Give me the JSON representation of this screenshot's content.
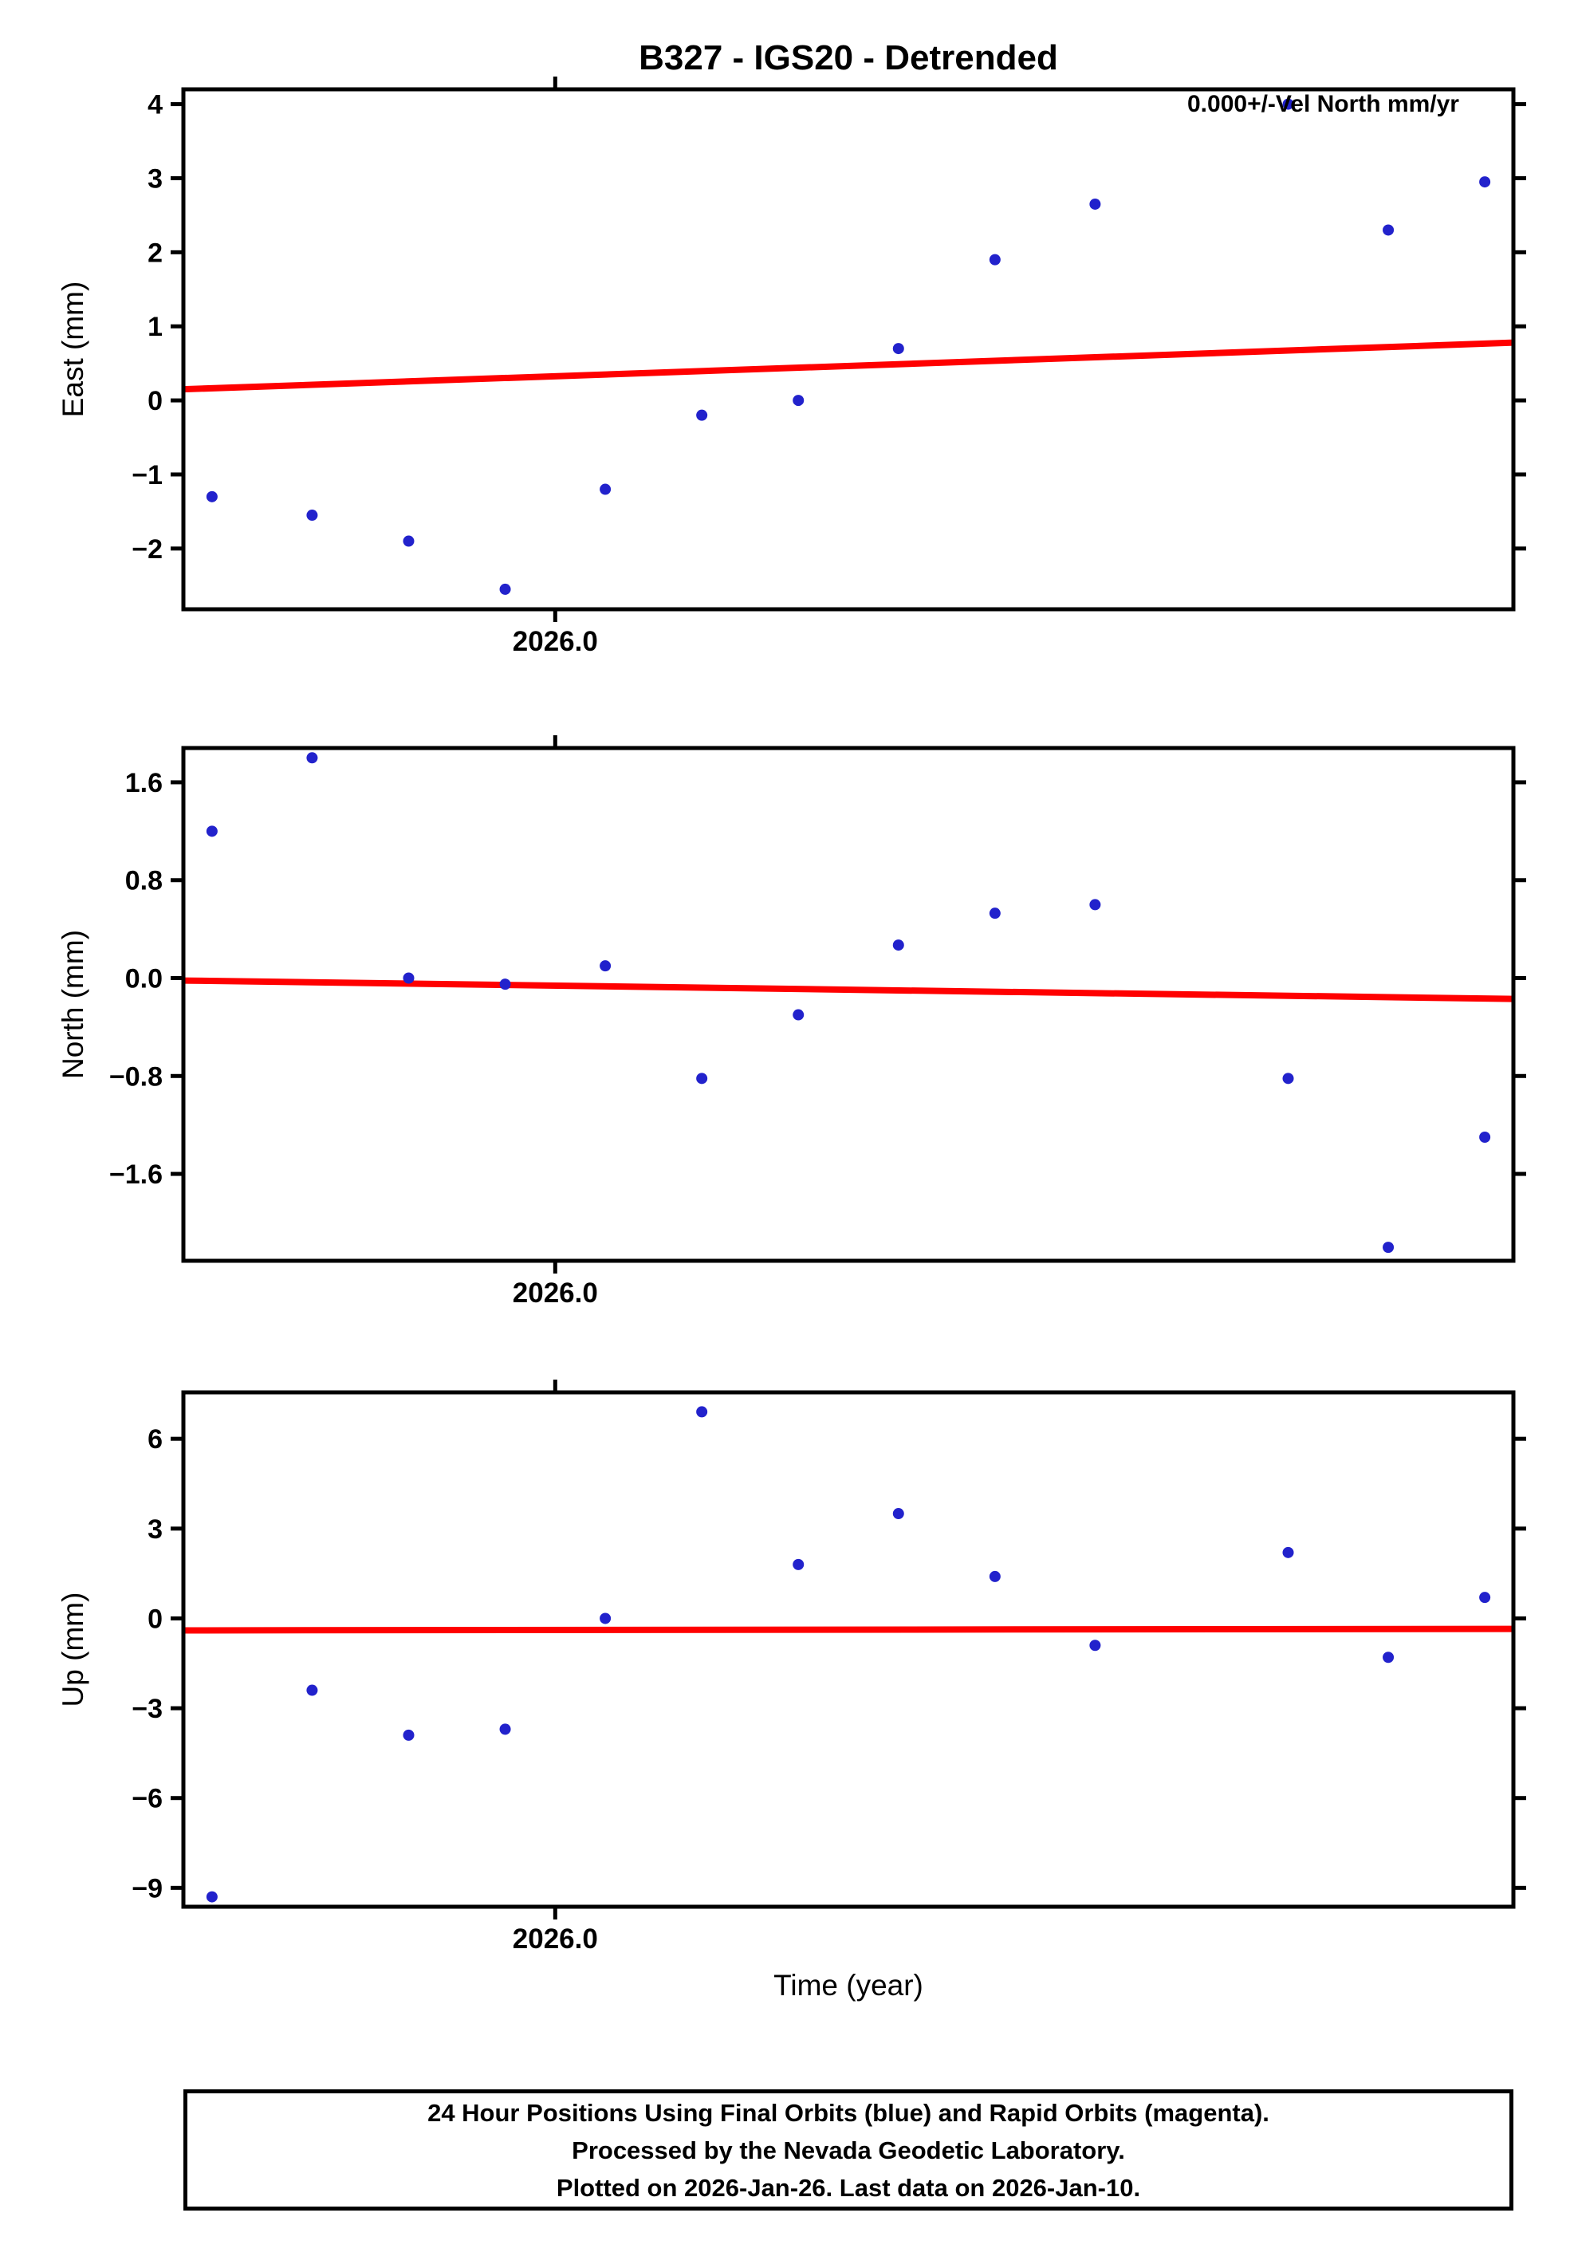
{
  "title": "B327 - IGS20 - Detrended",
  "xlabel": "Time (year)",
  "footer": {
    "lines": [
      "24 Hour Positions Using Final Orbits (blue) and Rapid Orbits (magenta).",
      "Processed by the Nevada Geodetic Laboratory.",
      "Plotted on 2026-Jan-26. Last data on 2026-Jan-10."
    ]
  },
  "colors": {
    "point": "#2222cc",
    "trend": "#ff0000",
    "frame": "#000000"
  },
  "chart_data": [
    {
      "type": "scatter",
      "name": "East",
      "ylabel": "East (mm)",
      "annotation": "0.000+/-Vel North mm/yr",
      "ylim": [
        -2.82,
        4.2
      ],
      "yticks": [
        {
          "v": 4,
          "label": "4"
        },
        {
          "v": 3,
          "label": "3"
        },
        {
          "v": 2,
          "label": "2"
        },
        {
          "v": 1,
          "label": "1"
        },
        {
          "v": 0,
          "label": "0"
        },
        {
          "v": -1,
          "label": "−1"
        },
        {
          "v": -2,
          "label": "−2"
        }
      ],
      "xlim": [
        2025.9896,
        2026.0268
      ],
      "xticks": [
        {
          "v": 2026.0,
          "label": "2026.0"
        }
      ],
      "x": [
        2025.9904,
        2025.9932,
        2025.9959,
        2025.9986,
        2026.0014,
        2026.0041,
        2026.0068,
        2026.0096,
        2026.0123,
        2026.0151,
        2026.0205,
        2026.0233,
        2026.026
      ],
      "values": [
        -1.3,
        -1.55,
        -1.9,
        -2.55,
        -1.2,
        -0.2,
        0.0,
        0.7,
        1.9,
        2.65,
        4.0,
        2.3,
        2.95
      ],
      "trend": {
        "start": 0.15,
        "end": 0.78
      }
    },
    {
      "type": "scatter",
      "name": "North",
      "ylabel": "North (mm)",
      "ylim": [
        -2.31,
        1.88
      ],
      "yticks": [
        {
          "v": 1.6,
          "label": "1.6"
        },
        {
          "v": 0.8,
          "label": "0.8"
        },
        {
          "v": 0.0,
          "label": "0.0"
        },
        {
          "v": -0.8,
          "label": "−0.8"
        },
        {
          "v": -1.6,
          "label": "−1.6"
        }
      ],
      "xlim": [
        2025.9896,
        2026.0268
      ],
      "xticks": [
        {
          "v": 2026.0,
          "label": "2026.0"
        }
      ],
      "x": [
        2025.9904,
        2025.9932,
        2025.9959,
        2025.9986,
        2026.0014,
        2026.0041,
        2026.0068,
        2026.0096,
        2026.0123,
        2026.0151,
        2026.0205,
        2026.0233,
        2026.026
      ],
      "values": [
        1.2,
        1.8,
        0.0,
        -0.05,
        0.1,
        -0.82,
        -0.3,
        0.27,
        0.53,
        0.6,
        -0.82,
        -2.2,
        -1.3
      ],
      "trend": {
        "start": -0.02,
        "end": -0.17
      }
    },
    {
      "type": "scatter",
      "name": "Up",
      "ylabel": "Up (mm)",
      "ylim": [
        -9.63,
        7.55
      ],
      "yticks": [
        {
          "v": 6,
          "label": "6"
        },
        {
          "v": 3,
          "label": "3"
        },
        {
          "v": 0,
          "label": "0"
        },
        {
          "v": -3,
          "label": "−3"
        },
        {
          "v": -6,
          "label": "−6"
        },
        {
          "v": -9,
          "label": "−9"
        }
      ],
      "xlim": [
        2025.9896,
        2026.0268
      ],
      "xticks": [
        {
          "v": 2026.0,
          "label": "2026.0"
        }
      ],
      "x": [
        2025.9904,
        2025.9932,
        2025.9959,
        2025.9986,
        2026.0014,
        2026.0041,
        2026.0068,
        2026.0096,
        2026.0123,
        2026.0151,
        2026.0205,
        2026.0233,
        2026.026
      ],
      "values": [
        -9.3,
        -2.4,
        -3.9,
        -3.7,
        0.0,
        6.9,
        1.8,
        3.5,
        1.4,
        -0.9,
        2.2,
        -1.3,
        0.7
      ],
      "trend": {
        "start": -0.4,
        "end": -0.35
      }
    }
  ]
}
